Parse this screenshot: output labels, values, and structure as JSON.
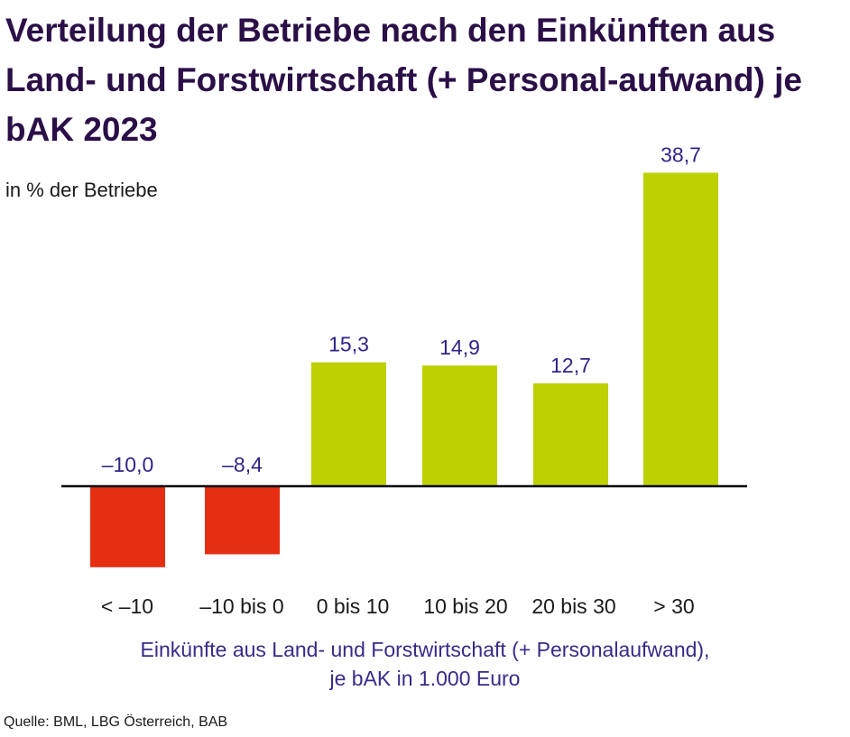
{
  "chart_data": {
    "type": "bar",
    "title": "Verteilung der Betriebe nach den Einkünften aus Land- und Forstwirtschaft (+ Personal-aufwand) je bAK 2023",
    "ylabel": "in % der Betriebe",
    "xlabel_line1": "Einkünfte aus Land- und Forstwirtschaft (+ Personalaufwand),",
    "xlabel_line2": "je bAK in 1.000 Euro",
    "categories": [
      "< –10",
      "–10 bis 0",
      "0 bis 10",
      "10 bis 20",
      "20 bis 30",
      "> 30"
    ],
    "values": [
      -10.0,
      -8.4,
      15.3,
      14.9,
      12.7,
      38.7
    ],
    "value_labels": [
      "–10,0",
      "–8,4",
      "15,3",
      "14,9",
      "12,7",
      "38,7"
    ],
    "ylim": [
      -10,
      38.7
    ],
    "grid": false,
    "colors": {
      "negative": "#e42f12",
      "positive": "#bdd000",
      "value_label": "#2f2588",
      "axis": "#000000"
    }
  },
  "source": "Quelle: BML, LBG Österreich, BAB"
}
